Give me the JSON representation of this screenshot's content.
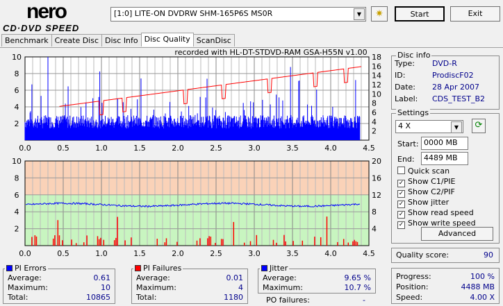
{
  "logo": {
    "line1": "nero",
    "line2": "CD·DVD SPEED"
  },
  "toolbar": {
    "drive": "[1:0]  LITE-ON DVDRW SHM-165P6S MS0R",
    "start_label": "Start",
    "exit_label": "Exit"
  },
  "tabs": [
    {
      "label": "Benchmark"
    },
    {
      "label": "Create Disc"
    },
    {
      "label": "Disc Info"
    },
    {
      "label": "Disc Quality",
      "active": true
    },
    {
      "label": "ScanDisc"
    }
  ],
  "chart_data": [
    {
      "type": "bar",
      "title": "recorded with HL-DT-STDVD-RAM GSA-H55N v1.00",
      "series": [
        {
          "name": "PI Errors",
          "color": "#0000ff",
          "avg": 0.61,
          "max": 10
        },
        {
          "name": "Read speed",
          "color": "#ff0000",
          "type": "line",
          "x": [
            0,
            0.5,
            1,
            1.5,
            2,
            2.5,
            3,
            3.5,
            4,
            4.4
          ],
          "y": [
            7.0,
            8.0,
            9.0,
            10.0,
            11.0,
            12.0,
            13.0,
            14.0,
            15.0,
            15.9
          ]
        }
      ],
      "xlim": [
        0,
        4.5
      ],
      "xticks": [
        "0.0",
        "0.5",
        "1.0",
        "1.5",
        "2.0",
        "2.5",
        "3.0",
        "3.5",
        "4.0",
        "4.5"
      ],
      "ylim": [
        0,
        10
      ],
      "yticks": [
        "2",
        "4",
        "6",
        "8",
        "10"
      ],
      "y2lim": [
        0,
        18
      ],
      "y2ticks": [
        "2",
        "4",
        "6",
        "8",
        "10",
        "12",
        "14",
        "16",
        "18"
      ]
    },
    {
      "type": "bar",
      "series": [
        {
          "name": "PI Failures",
          "color": "#ff0000",
          "avg": 0.01,
          "max": 4
        },
        {
          "name": "Jitter",
          "color": "#0000ff",
          "type": "line",
          "avg": 9.65
        }
      ],
      "xlim": [
        0,
        4.5
      ],
      "xticks": [
        "0.0",
        "0.5",
        "1.0",
        "1.5",
        "2.0",
        "2.5",
        "3.0",
        "3.5",
        "4.0",
        "4.5"
      ],
      "ylim": [
        0,
        10
      ],
      "yticks": [
        "2",
        "4",
        "6",
        "8",
        "10"
      ],
      "y2lim": [
        0,
        20
      ],
      "y2ticks": [
        "4",
        "8",
        "12",
        "16",
        "20"
      ]
    }
  ],
  "disc_info": {
    "title": "Disc info",
    "type_label": "Type:",
    "type": "DVD-R",
    "id_label": "ID:",
    "id": "ProdiscF02",
    "date_label": "Date:",
    "date": "28 Apr 2007",
    "label_label": "Label:",
    "label": "CDS_TEST_B2"
  },
  "settings": {
    "title": "Settings",
    "speed": "4 X",
    "start_label": "Start:",
    "start": "0000 MB",
    "end_label": "End:",
    "end": "4489 MB",
    "checks": [
      {
        "label": "Quick scan",
        "checked": false
      },
      {
        "label": "Show C1/PIE",
        "checked": true
      },
      {
        "label": "Show C2/PIF",
        "checked": true
      },
      {
        "label": "Show jitter",
        "checked": true
      },
      {
        "label": "Show read speed",
        "checked": true
      },
      {
        "label": "Show write speed",
        "checked": true
      }
    ],
    "advanced_label": "Advanced"
  },
  "quality": {
    "label": "Quality score:",
    "value": "90"
  },
  "pi_errors": {
    "title": "PI Errors",
    "color": "#0000ff",
    "avg_label": "Average:",
    "avg": "0.61",
    "max_label": "Maximum:",
    "max": "10",
    "total_label": "Total:",
    "total": "10865"
  },
  "pi_failures": {
    "title": "PI Failures",
    "color": "#ff0000",
    "avg_label": "Average:",
    "avg": "0.01",
    "max_label": "Maximum:",
    "max": "4",
    "total_label": "Total:",
    "total": "1180"
  },
  "jitter": {
    "title": "Jitter",
    "color": "#0000ff",
    "avg_label": "Average:",
    "avg": "9.65 %",
    "max_label": "Maximum:",
    "max": "10.7 %",
    "po_label": "PO failures:",
    "po": "-"
  },
  "progress": {
    "progress_label": "Progress:",
    "progress": "100 %",
    "position_label": "Position:",
    "position": "4488 MB",
    "speed_label": "Speed:",
    "speed": "4.00 X"
  }
}
